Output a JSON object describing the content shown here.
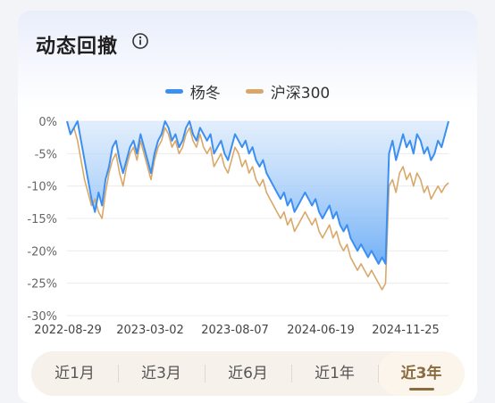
{
  "header": {
    "title": "动态回撤"
  },
  "legend": [
    {
      "label": "杨冬",
      "color": "#3b8ff2"
    },
    {
      "label": "沪深300",
      "color": "#d9a869"
    }
  ],
  "tabs": [
    {
      "label": "近1月",
      "active": false
    },
    {
      "label": "近3月",
      "active": false
    },
    {
      "label": "近6月",
      "active": false
    },
    {
      "label": "近1年",
      "active": false
    },
    {
      "label": "近3年",
      "active": true
    }
  ],
  "chart_data": {
    "type": "area",
    "x_ticks": [
      "2022-08-29",
      "2023-03-02",
      "2023-08-07",
      "2024-06-19",
      "2024-11-25"
    ],
    "y_ticks": [
      "0%",
      "-5%",
      "-10%",
      "-15%",
      "-20%",
      "-25%",
      "-30%"
    ],
    "ylim": [
      -30,
      0
    ],
    "grid": true,
    "series": [
      {
        "name": "杨冬",
        "color": "#3b8ff2",
        "fill": true,
        "values": [
          0,
          -2,
          -1,
          0,
          -3,
          -6,
          -9,
          -12,
          -14,
          -11,
          -13,
          -9,
          -7,
          -4,
          -3,
          -6,
          -8,
          -6,
          -4,
          -3,
          -5,
          -2,
          -4,
          -6,
          -8,
          -5,
          -3,
          -2,
          0,
          -1,
          -3,
          -2,
          -4,
          -3,
          -1,
          0,
          -2,
          -3,
          -1,
          -2,
          -3,
          -2,
          -5,
          -4,
          -3,
          -5,
          -6,
          -4,
          -2,
          -3,
          -4,
          -3,
          -5,
          -4,
          -6,
          -7,
          -6,
          -8,
          -9,
          -10,
          -11,
          -12,
          -11,
          -13,
          -12,
          -14,
          -13,
          -12,
          -11,
          -12,
          -13,
          -12,
          -14,
          -15,
          -14,
          -13,
          -15,
          -14,
          -16,
          -17,
          -16,
          -18,
          -19,
          -20,
          -19,
          -20,
          -21,
          -20,
          -21,
          -22,
          -21,
          -22,
          -5,
          -3,
          -6,
          -4,
          -2,
          -4,
          -3,
          -5,
          -2,
          -3,
          -5,
          -4,
          -6,
          -5,
          -3,
          -4,
          -2,
          0
        ],
        "x_frac": null
      },
      {
        "name": "沪深300",
        "color": "#d9a869",
        "fill": false,
        "values": [
          0,
          -2,
          -1,
          -3,
          -6,
          -9,
          -11,
          -13,
          -12,
          -14,
          -15,
          -11,
          -8,
          -6,
          -5,
          -8,
          -10,
          -7,
          -5,
          -4,
          -6,
          -3,
          -5,
          -7,
          -9,
          -6,
          -4,
          -3,
          -1,
          -2,
          -4,
          -3,
          -5,
          -4,
          -2,
          -1,
          -3,
          -4,
          -2,
          -4,
          -5,
          -4,
          -7,
          -6,
          -5,
          -7,
          -8,
          -6,
          -4,
          -5,
          -7,
          -6,
          -8,
          -7,
          -9,
          -10,
          -9,
          -11,
          -12,
          -13,
          -14,
          -15,
          -14,
          -16,
          -15,
          -17,
          -16,
          -15,
          -14,
          -15,
          -16,
          -15,
          -17,
          -18,
          -17,
          -16,
          -18,
          -17,
          -19,
          -20,
          -19,
          -21,
          -22,
          -23,
          -22,
          -23,
          -24,
          -23,
          -24,
          -25,
          -26,
          -25,
          -10,
          -9,
          -11,
          -8,
          -7,
          -9,
          -8,
          -10,
          -8,
          -9,
          -11,
          -10,
          -12,
          -11,
          -10,
          -11,
          -10,
          -9.5
        ]
      }
    ]
  }
}
